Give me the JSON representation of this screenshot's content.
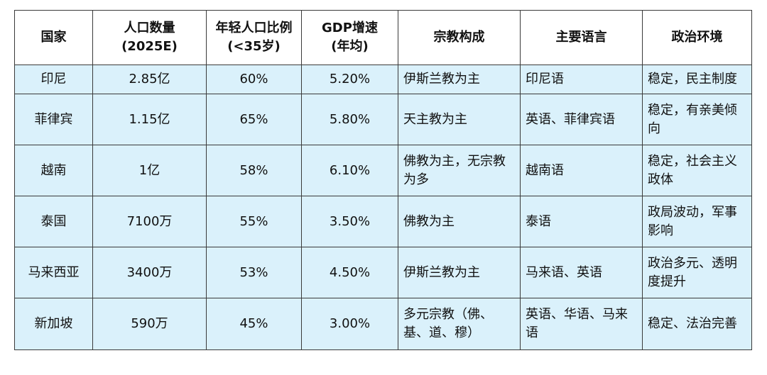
{
  "table": {
    "headers": [
      [
        "国家"
      ],
      [
        "人口数量",
        "(2025E)"
      ],
      [
        "年轻人口比例",
        "(<35岁)"
      ],
      [
        "GDP增速",
        "(年均)"
      ],
      [
        "宗教构成"
      ],
      [
        "主要语言"
      ],
      [
        "政治环境"
      ]
    ],
    "rows": [
      [
        "印尼",
        "2.85亿",
        "60%",
        "5.20%",
        "伊斯兰教为主",
        "印尼语",
        "稳定，民主制度"
      ],
      [
        "菲律宾",
        "1.15亿",
        "65%",
        "5.80%",
        "天主教为主",
        "英语、菲律宾语",
        "稳定，有亲美倾向"
      ],
      [
        "越南",
        "1亿",
        "58%",
        "6.10%",
        "佛教为主，无宗教为多",
        "越南语",
        "稳定，社会主义政体"
      ],
      [
        "泰国",
        "7100万",
        "55%",
        "3.50%",
        "佛教为主",
        "泰语",
        "政局波动，军事影响"
      ],
      [
        "马来西亚",
        "3400万",
        "53%",
        "4.50%",
        "伊斯兰教为主",
        "马来语、英语",
        "政治多元、透明度提升"
      ],
      [
        "新加坡",
        "590万",
        "45%",
        "3.00%",
        "多元宗教（佛、基、道、穆）",
        "英语、华语、马来语",
        "稳定、法治完善"
      ]
    ]
  }
}
